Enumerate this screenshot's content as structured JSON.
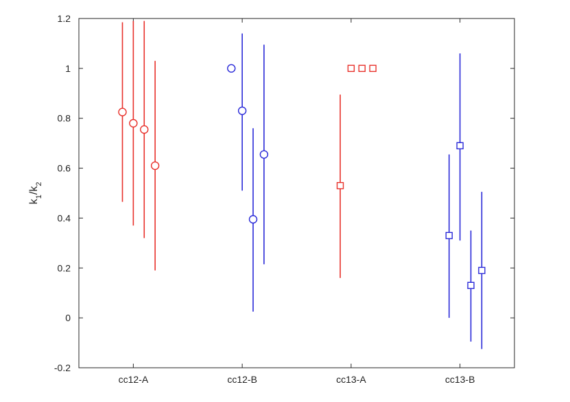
{
  "chart_data": {
    "type": "scatter",
    "title": "",
    "xlabel": "",
    "ylabel": "k1/k2",
    "ylabel_parts": {
      "k1": "k",
      "sub1": "1",
      "slash": "/",
      "k2": "k",
      "sub2": "2"
    },
    "categories": [
      "cc12-A",
      "cc12-B",
      "cc13-A",
      "cc13-B"
    ],
    "ylim": [
      -0.2,
      1.2
    ],
    "yticks": [
      "-0.2",
      "0",
      "0.2",
      "0.4",
      "0.6",
      "0.8",
      "1",
      "1.2"
    ],
    "grid": false,
    "legend": "none",
    "series": [
      {
        "category": "cc12-A",
        "color": "#e8302a",
        "marker": "circle",
        "x": [
          0.9,
          1.0,
          1.1,
          1.2
        ],
        "y": [
          0.825,
          0.78,
          0.755,
          0.61
        ],
        "err_low": [
          0.465,
          0.37,
          0.32,
          0.19
        ],
        "err_high": [
          1.185,
          1.19,
          1.19,
          1.03
        ]
      },
      {
        "category": "cc12-B",
        "color": "#2828d8",
        "marker": "circle",
        "x": [
          1.9,
          2.0,
          2.1,
          2.2
        ],
        "y": [
          1.0,
          0.83,
          0.395,
          0.655
        ],
        "err_low": [
          null,
          0.51,
          0.025,
          0.215
        ],
        "err_high": [
          null,
          1.14,
          0.76,
          1.095
        ]
      },
      {
        "category": "cc13-A",
        "color": "#e8302a",
        "marker": "square",
        "x": [
          2.9,
          3.0,
          3.1,
          3.2
        ],
        "y": [
          0.53,
          1.0,
          1.0,
          1.0
        ],
        "err_low": [
          0.16,
          null,
          null,
          null
        ],
        "err_high": [
          0.895,
          null,
          null,
          null
        ]
      },
      {
        "category": "cc13-B",
        "color": "#2828d8",
        "marker": "square",
        "x": [
          3.9,
          4.0,
          4.1,
          4.2
        ],
        "y": [
          0.33,
          0.69,
          0.13,
          0.19
        ],
        "err_low": [
          0.0,
          0.31,
          -0.095,
          -0.125
        ],
        "err_high": [
          0.655,
          1.06,
          0.35,
          0.505
        ]
      }
    ]
  }
}
